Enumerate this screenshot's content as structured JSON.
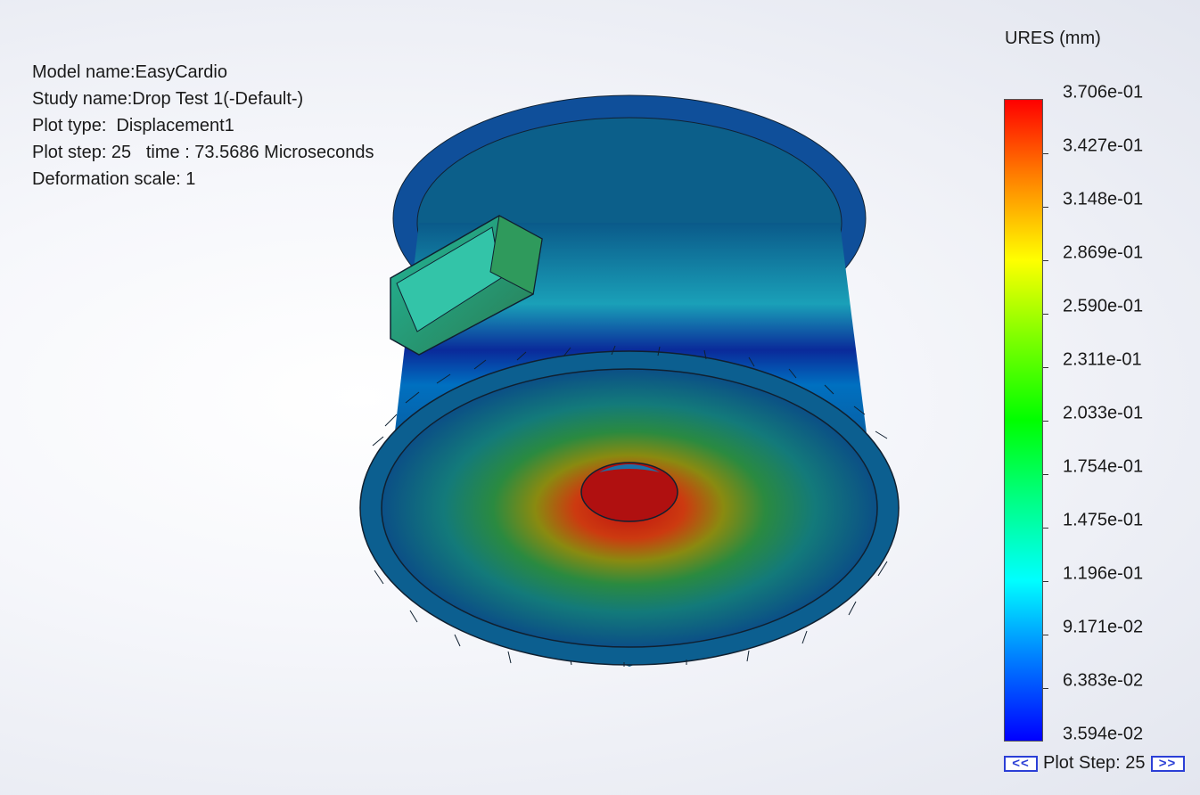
{
  "info": {
    "model_name": "Model name:EasyCardio",
    "study_name": "Study name:Drop Test 1(-Default-)",
    "plot_type": "Plot type:  Displacement1",
    "plot_step_time": "Plot step: 25   time : 73.5686 Microseconds",
    "deformation_scale": "Deformation scale: 1"
  },
  "legend": {
    "title": "URES (mm)",
    "ticks": [
      "3.706e-01",
      "3.427e-01",
      "3.148e-01",
      "2.869e-01",
      "2.590e-01",
      "2.311e-01",
      "2.033e-01",
      "1.754e-01",
      "1.475e-01",
      "1.196e-01",
      "9.171e-02",
      "6.383e-02",
      "3.594e-02"
    ],
    "colors": {
      "max": "#ff0000",
      "mid": "#00ff00",
      "min": "#0000ff"
    }
  },
  "plot_step": {
    "prev_label": "<<",
    "label": "Plot Step: 25",
    "next_label": ">>"
  }
}
